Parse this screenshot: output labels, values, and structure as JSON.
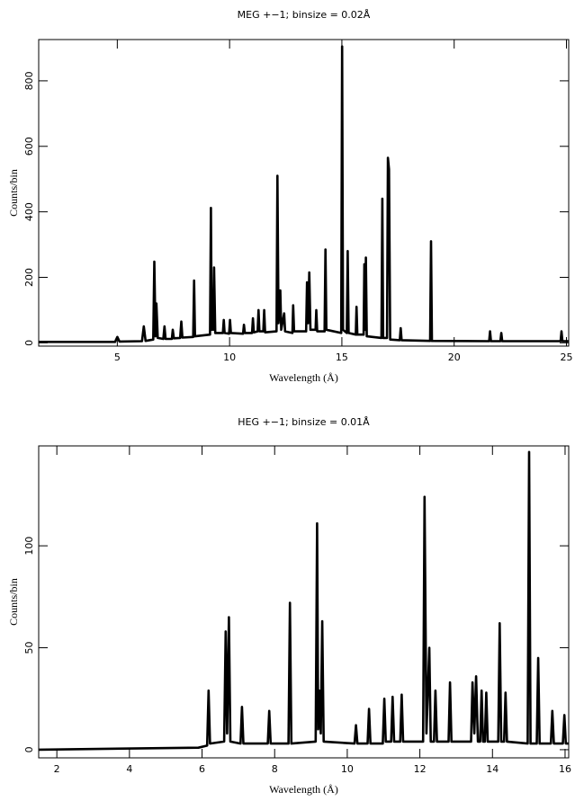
{
  "chart_data": [
    {
      "type": "line",
      "title": "MEG +−1; binsize = 0.02Å",
      "x_label": "Wavelength (Å)",
      "y_label": "Counts/bin",
      "xlim": [
        1.5,
        25.1
      ],
      "ylim": [
        -10,
        926
      ],
      "xticks": [
        5,
        10,
        15,
        20,
        25
      ],
      "yticks": [
        0,
        200,
        400,
        600,
        800
      ],
      "series": [
        {
          "color": "#000000",
          "x": [
            1.5,
            4.9,
            5.0,
            5.1,
            6.1,
            6.18,
            6.26,
            6.6,
            6.65,
            6.7,
            6.74,
            6.8,
            7.05,
            7.1,
            7.15,
            7.43,
            7.47,
            7.52,
            7.8,
            7.85,
            7.9,
            8.38,
            8.42,
            8.46,
            9.13,
            9.17,
            9.2,
            9.23,
            9.27,
            9.31,
            9.36,
            9.7,
            9.74,
            9.78,
            9.98,
            10.02,
            10.06,
            10.6,
            10.64,
            10.68,
            11.0,
            11.04,
            11.08,
            11.25,
            11.29,
            11.33,
            11.5,
            11.54,
            11.58,
            12.09,
            12.13,
            12.18,
            12.26,
            12.3,
            12.43,
            12.47,
            12.8,
            12.83,
            12.87,
            13.41,
            13.45,
            13.5,
            13.55,
            13.6,
            13.83,
            13.86,
            13.9,
            14.23,
            14.27,
            14.31,
            14.97,
            15.01,
            15.05,
            15.22,
            15.26,
            15.3,
            15.62,
            15.65,
            15.69,
            15.97,
            16.0,
            16.04,
            16.07,
            16.11,
            16.76,
            16.8,
            16.84,
            17.01,
            17.05,
            17.1,
            17.15,
            17.58,
            17.62,
            17.66,
            18.93,
            18.97,
            19.01,
            21.56,
            21.6,
            21.64,
            22.06,
            22.1,
            22.14,
            24.74,
            24.78,
            24.82,
            25.1
          ],
          "values": [
            3,
            3,
            18,
            4,
            5,
            50,
            6,
            10,
            248,
            20,
            120,
            15,
            12,
            50,
            12,
            12,
            40,
            14,
            15,
            65,
            16,
            18,
            190,
            20,
            25,
            412,
            40,
            100,
            40,
            230,
            30,
            30,
            70,
            30,
            28,
            70,
            30,
            28,
            55,
            30,
            30,
            75,
            32,
            35,
            100,
            35,
            35,
            100,
            32,
            35,
            510,
            60,
            160,
            40,
            90,
            35,
            30,
            115,
            35,
            35,
            185,
            60,
            215,
            40,
            40,
            100,
            35,
            35,
            285,
            40,
            30,
            905,
            40,
            30,
            280,
            30,
            25,
            110,
            25,
            25,
            240,
            40,
            260,
            20,
            15,
            440,
            15,
            15,
            565,
            530,
            10,
            8,
            45,
            8,
            6,
            310,
            6,
            5,
            35,
            5,
            5,
            30,
            5,
            5,
            35,
            5,
            5
          ]
        }
      ]
    },
    {
      "type": "line",
      "title": "HEG +−1; binsize = 0.01Å",
      "x_label": "Wavelength (Å)",
      "y_label": "Counts/bin",
      "xlim": [
        1.5,
        16.1
      ],
      "ylim": [
        -4,
        149
      ],
      "xticks": [
        2,
        4,
        6,
        8,
        10,
        12,
        14,
        16
      ],
      "yticks": [
        0,
        50,
        100
      ],
      "series": [
        {
          "color": "#000000",
          "x": [
            1.5,
            5.9,
            6.14,
            6.18,
            6.22,
            6.61,
            6.65,
            6.69,
            6.74,
            6.78,
            7.06,
            7.1,
            7.14,
            7.81,
            7.85,
            7.89,
            8.38,
            8.42,
            8.46,
            9.13,
            9.17,
            9.2,
            9.23,
            9.27,
            9.31,
            9.35,
            10.2,
            10.24,
            10.28,
            10.56,
            10.6,
            10.64,
            10.98,
            11.02,
            11.06,
            11.21,
            11.25,
            11.29,
            11.46,
            11.5,
            11.54,
            12.09,
            12.13,
            12.18,
            12.26,
            12.3,
            12.39,
            12.43,
            12.47,
            12.79,
            12.83,
            12.87,
            13.41,
            13.45,
            13.5,
            13.55,
            13.6,
            13.66,
            13.7,
            13.74,
            13.79,
            13.83,
            13.87,
            14.16,
            14.2,
            14.24,
            14.32,
            14.36,
            14.4,
            14.97,
            15.01,
            15.05,
            15.22,
            15.26,
            15.3,
            15.61,
            15.65,
            15.69,
            15.94,
            15.98,
            16.02,
            16.1
          ],
          "values": [
            0,
            1,
            2,
            29,
            3,
            4,
            58,
            8,
            65,
            4,
            3,
            21,
            3,
            3,
            19,
            3,
            3,
            72,
            3,
            4,
            111,
            10,
            29,
            8,
            63,
            4,
            3,
            12,
            3,
            3,
            20,
            3,
            3,
            25,
            4,
            4,
            26,
            4,
            4,
            27,
            4,
            4,
            124,
            8,
            50,
            4,
            4,
            29,
            4,
            4,
            33,
            4,
            4,
            33,
            8,
            36,
            4,
            4,
            29,
            4,
            4,
            28,
            4,
            4,
            62,
            4,
            4,
            28,
            4,
            3,
            146,
            3,
            3,
            45,
            3,
            3,
            19,
            3,
            3,
            17,
            3,
            3
          ]
        }
      ]
    }
  ]
}
